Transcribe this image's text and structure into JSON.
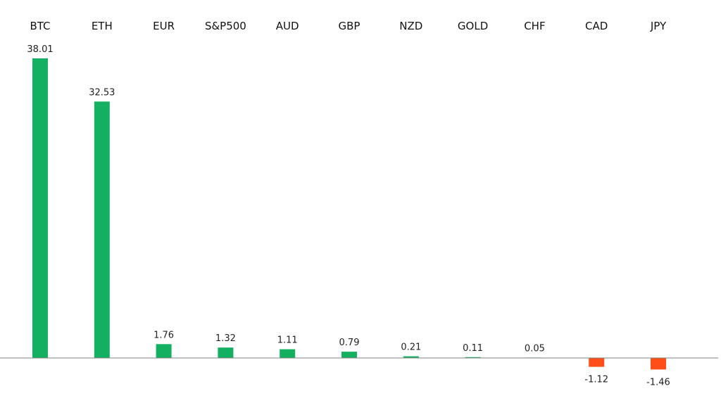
{
  "chart_data": {
    "type": "bar",
    "categories": [
      "BTC",
      "ETH",
      "EUR",
      "S&P500",
      "AUD",
      "GBP",
      "NZD",
      "GOLD",
      "CHF",
      "CAD",
      "JPY"
    ],
    "values": [
      38.01,
      32.53,
      1.76,
      1.32,
      1.11,
      0.79,
      0.21,
      0.11,
      0.05,
      -1.12,
      -1.46
    ],
    "value_labels": [
      "38.01",
      "32.53",
      "1.76",
      "1.32",
      "1.11",
      "0.79",
      "0.21",
      "0.11",
      "0.05",
      "-1.12",
      "-1.46"
    ],
    "ylim": [
      -1.46,
      38.01
    ],
    "grid": false,
    "legend": "none",
    "colors": {
      "positive": "#12b060",
      "negative": "#ff4e17",
      "axis": "#808080"
    }
  }
}
